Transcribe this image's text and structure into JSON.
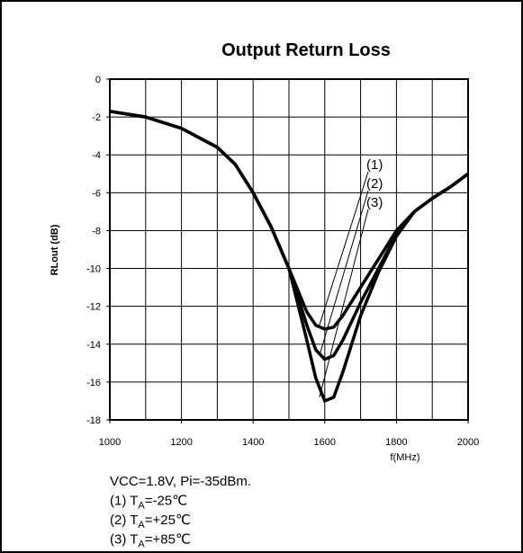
{
  "chart_data": {
    "type": "line",
    "title": "Output Return Loss",
    "x_label": "f(MHz)",
    "y_label": "RLout (dB)",
    "x": [
      1000,
      1100,
      1200,
      1300,
      1350,
      1400,
      1450,
      1500,
      1550,
      1575,
      1600,
      1625,
      1650,
      1700,
      1750,
      1800,
      1850,
      1900,
      1950,
      2000
    ],
    "series": [
      {
        "name": "(1)",
        "color": "#000000",
        "values": [
          -1.7,
          -2.0,
          -2.6,
          -3.6,
          -4.5,
          -6.0,
          -7.8,
          -10.0,
          -12.3,
          -13.0,
          -13.2,
          -13.1,
          -12.5,
          -11.0,
          -9.5,
          -8.0,
          -7.0,
          -6.3,
          -5.7,
          -5.0
        ]
      },
      {
        "name": "(2)",
        "color": "#000000",
        "values": [
          -1.7,
          -2.0,
          -2.6,
          -3.6,
          -4.5,
          -6.0,
          -7.8,
          -10.0,
          -13.0,
          -14.3,
          -14.8,
          -14.6,
          -13.8,
          -11.8,
          -10.0,
          -8.2,
          -7.0,
          -6.3,
          -5.7,
          -5.0
        ]
      },
      {
        "name": "(3)",
        "color": "#000000",
        "values": [
          -1.7,
          -2.0,
          -2.6,
          -3.6,
          -4.5,
          -6.0,
          -7.8,
          -10.0,
          -13.8,
          -15.8,
          -17.0,
          -16.8,
          -15.5,
          -12.5,
          -10.2,
          -8.3,
          -7.0,
          -6.3,
          -5.7,
          -5.0
        ]
      }
    ],
    "xlim": [
      1000,
      2000
    ],
    "xticks": [
      1000,
      1200,
      1400,
      1600,
      1800,
      2000
    ],
    "xgrid": [
      1000,
      1100,
      1200,
      1300,
      1400,
      1500,
      1600,
      1700,
      1800,
      1900,
      2000
    ],
    "ylim": [
      -18,
      0
    ],
    "yticks": [
      0,
      -2,
      -4,
      -6,
      -8,
      -10,
      -12,
      -14,
      -16,
      -18
    ],
    "grid": true,
    "notes": [
      {
        "text": "VCC=1.8V, Pi=-35dBm."
      },
      {
        "text": "(1) T",
        "sub": "A",
        "suffix": "=-25℃"
      },
      {
        "text": "(2) T",
        "sub": "A",
        "suffix": "=+25℃"
      },
      {
        "text": "(3) T",
        "sub": "A",
        "suffix": "=+85℃"
      }
    ]
  }
}
